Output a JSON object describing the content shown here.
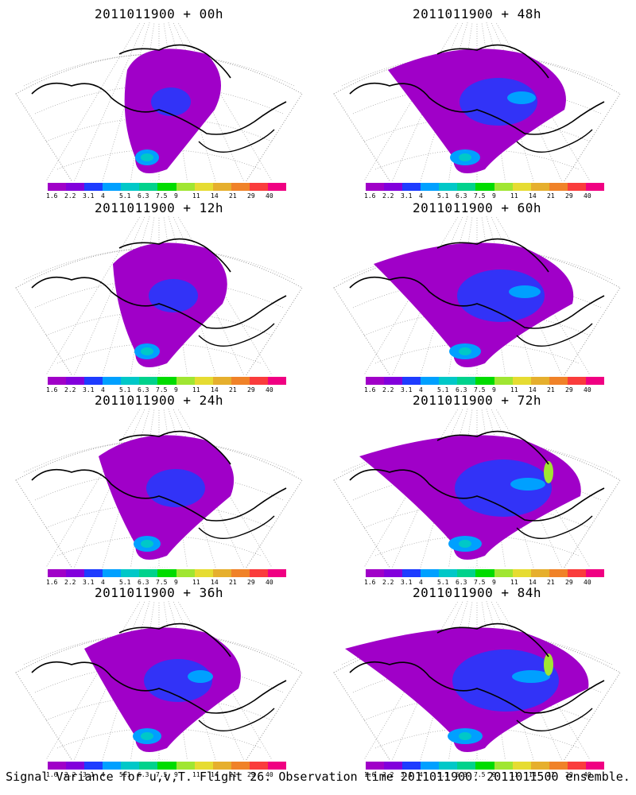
{
  "panels": [
    {
      "title": "2011011900 + 00h"
    },
    {
      "title": "2011011900 + 48h"
    },
    {
      "title": "2011011900 + 12h"
    },
    {
      "title": "2011011900 + 60h"
    },
    {
      "title": "2011011900 + 24h"
    },
    {
      "title": "2011011900 + 72h"
    },
    {
      "title": "2011011900 + 36h"
    },
    {
      "title": "2011011900 + 84h"
    }
  ],
  "colorbar": {
    "labels": [
      "1.6",
      "2.2",
      "3.1",
      "4",
      "5.1",
      "6.3",
      "7.5",
      "9",
      "11",
      "14",
      "21",
      "29",
      "40"
    ],
    "colors": [
      "#a000c8",
      "#8200dc",
      "#1e3cff",
      "#00a0ff",
      "#00c8c8",
      "#00d28c",
      "#00dc00",
      "#a0e632",
      "#e6dc32",
      "#e6af2d",
      "#f08228",
      "#fa3c3c",
      "#f00082"
    ]
  },
  "caption": "Signal Variance for u,v,T. Flight 26. Observation time 2011011900. 2011011500 ensemble."
}
